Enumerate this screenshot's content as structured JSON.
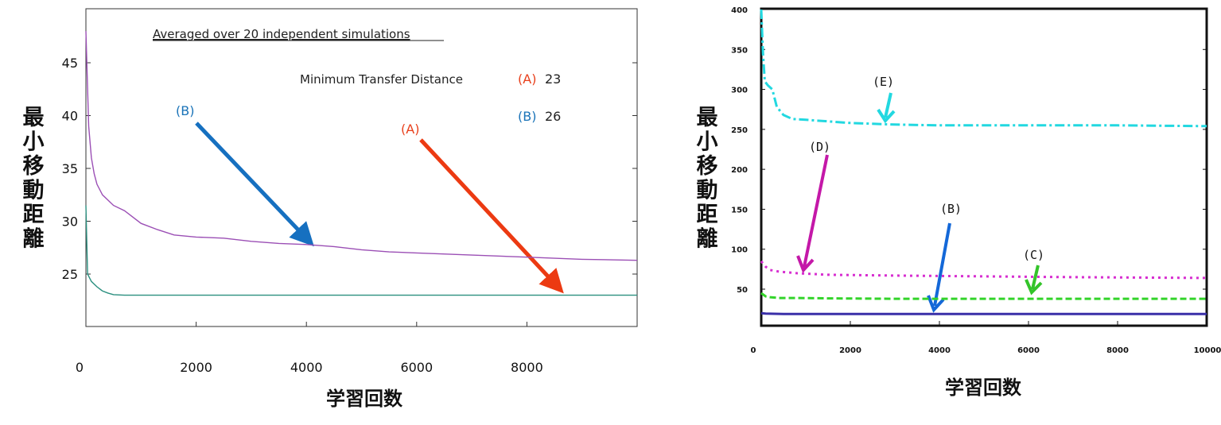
{
  "chart_data": [
    {
      "type": "line",
      "subtitle": "Averaged over 20 independent simulations",
      "xlabel": "学習回数",
      "ylabel": "最小移動距離",
      "xlim": [
        0,
        10000
      ],
      "ylim": [
        20,
        50
      ],
      "x_ticks": [
        "0",
        "2000",
        "4000",
        "6000",
        "8000"
      ],
      "y_ticks": [
        "25",
        "30",
        "35",
        "40",
        "45"
      ],
      "grid": false,
      "legend_title": "Minimum Transfer Distance",
      "legend": [
        {
          "tag": "(A)",
          "value": "23",
          "tag_color": "#e8401c"
        },
        {
          "tag": "(B)",
          "value": "26",
          "tag_color": "#1a73b8"
        }
      ],
      "annotations": [
        {
          "label": "(B)",
          "color": "#1a73b8",
          "arrow_color": "#1670c0"
        },
        {
          "label": "(A)",
          "color": "#e8401c",
          "arrow_color": "#ec3a12"
        }
      ],
      "series": [
        {
          "label": "(B)",
          "color": "#9b4fb5",
          "x": [
            0,
            50,
            100,
            150,
            200,
            300,
            400,
            500,
            700,
            1000,
            1300,
            1600,
            2000,
            2500,
            3000,
            3500,
            4000,
            4500,
            5000,
            5500,
            6000,
            7000,
            8000,
            9000,
            10000
          ],
          "y": [
            48,
            39,
            36,
            34.5,
            33.5,
            32.5,
            32,
            31.5,
            31,
            29.8,
            29.2,
            28.7,
            28.5,
            28.4,
            28.1,
            27.9,
            27.8,
            27.6,
            27.3,
            27.1,
            27.0,
            26.8,
            26.6,
            26.4,
            26.3
          ]
        },
        {
          "label": "(A)",
          "color": "#2a8f7f",
          "x": [
            0,
            30,
            100,
            200,
            300,
            400,
            500,
            700,
            1000,
            2000,
            4000,
            6000,
            8000,
            10000
          ],
          "y": [
            31.5,
            25,
            24.3,
            23.8,
            23.4,
            23.2,
            23.05,
            23,
            23,
            23,
            23,
            23,
            23,
            23
          ]
        }
      ]
    },
    {
      "type": "line",
      "xlabel": "学習回数",
      "ylabel": "最小移動距離",
      "xlim": [
        0,
        10000
      ],
      "ylim": [
        0,
        400
      ],
      "x_ticks": [
        "0",
        "2000",
        "4000",
        "6000",
        "8000",
        "10000"
      ],
      "y_ticks": [
        "50",
        "100",
        "150",
        "200",
        "250",
        "300",
        "350",
        "400"
      ],
      "grid": false,
      "annotations": [
        {
          "label": "(E)",
          "color": "#22d8e0"
        },
        {
          "label": "(D)",
          "color": "#c418a8"
        },
        {
          "label": "(B)",
          "color": "#1468d8"
        },
        {
          "label": "(C)",
          "color": "#33c42a"
        }
      ],
      "series": [
        {
          "label": "(E)",
          "color": "#22d8e0",
          "style": "dashdot",
          "x": [
            0,
            40,
            80,
            150,
            250,
            350,
            500,
            700,
            1000,
            1500,
            2000,
            3000,
            4000,
            5000,
            6000,
            8000,
            10000
          ],
          "y": [
            400,
            345,
            310,
            305,
            300,
            278,
            268,
            263,
            262,
            260,
            258,
            256,
            255,
            255,
            255,
            255,
            254
          ]
        },
        {
          "label": "(D)",
          "color": "#d72ed0",
          "style": "dotted",
          "x": [
            0,
            100,
            200,
            400,
            800,
            1500,
            3000,
            5000,
            7000,
            10000
          ],
          "y": [
            85,
            78,
            74,
            72,
            70,
            68,
            67,
            66,
            65,
            64
          ]
        },
        {
          "label": "(C)",
          "color": "#33d42a",
          "style": "dashed",
          "x": [
            0,
            100,
            200,
            400,
            800,
            1500,
            3000,
            6000,
            10000
          ],
          "y": [
            45,
            41,
            40,
            39,
            39,
            38.5,
            38,
            38,
            38
          ]
        },
        {
          "label": "(B)",
          "color": "#3a2fa8",
          "style": "solid",
          "x": [
            0,
            100,
            500,
            1000,
            3000,
            6000,
            10000
          ],
          "y": [
            20,
            19.5,
            19,
            19,
            19,
            19,
            19
          ]
        }
      ]
    }
  ]
}
